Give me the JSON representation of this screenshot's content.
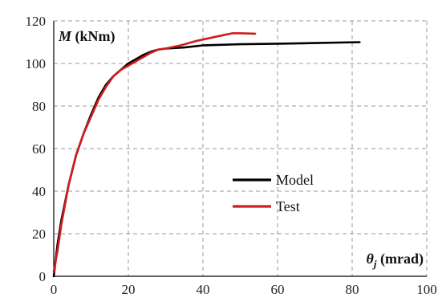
{
  "chart_data": {
    "type": "line",
    "title": "",
    "xlabel": "θj (mrad)",
    "ylabel": "M (kNm)",
    "xlim": [
      0,
      100
    ],
    "ylim": [
      0,
      120
    ],
    "xticks": [
      0,
      20,
      40,
      60,
      80,
      100
    ],
    "yticks": [
      0,
      20,
      40,
      60,
      80,
      100,
      120
    ],
    "grid": true,
    "legend_position": "center-right",
    "series": [
      {
        "name": "Model",
        "color": "#000000",
        "x": [
          0,
          1,
          2,
          4,
          6,
          8,
          10,
          12,
          14,
          16,
          18,
          20,
          22,
          24,
          26,
          28,
          30,
          35,
          40,
          50,
          60,
          70,
          82
        ],
        "y": [
          0,
          15,
          26,
          43,
          57,
          67,
          76,
          84,
          90,
          94,
          97,
          100,
          102,
          104,
          105.5,
          106.5,
          107,
          107.5,
          108.5,
          109,
          109.3,
          109.6,
          110
        ]
      },
      {
        "name": "Test",
        "color": "#d01c1c",
        "x": [
          0,
          1,
          2,
          4,
          6,
          8,
          10,
          12,
          14,
          16,
          18,
          20,
          22,
          24,
          26,
          28,
          30,
          34,
          38,
          42,
          46,
          48,
          50,
          54
        ],
        "y": [
          2,
          12,
          24,
          43,
          57,
          67,
          75,
          83,
          89,
          94,
          97,
          99,
          101,
          103,
          105,
          106.5,
          107,
          108.5,
          110.5,
          112,
          113.5,
          114.2,
          114.2,
          114
        ]
      }
    ]
  }
}
